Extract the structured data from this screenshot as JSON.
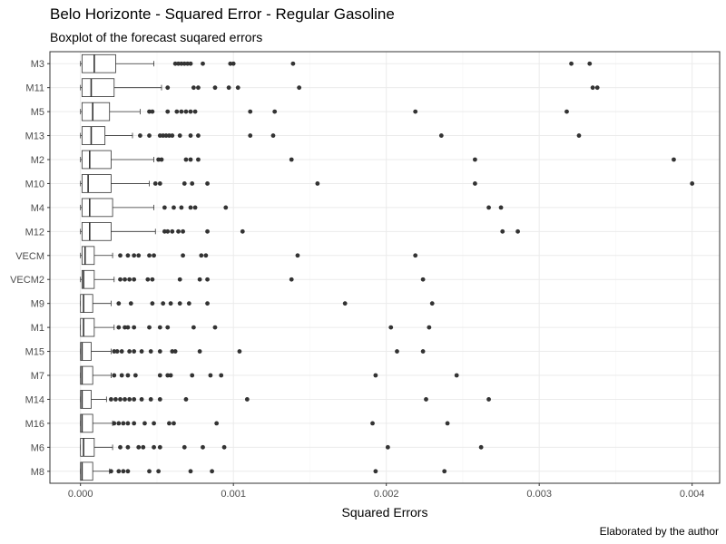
{
  "chart_data": {
    "type": "boxplot",
    "orientation": "horizontal",
    "title": "Belo Horizonte - Squared Error - Regular Gasoline",
    "subtitle": "Boxplot of the forecast suqared errors",
    "xlabel": "Squared Errors",
    "ylabel": "",
    "caption": "Elaborated by the author",
    "xlim": [
      -0.0002,
      0.00418
    ],
    "x_ticks": [
      0,
      0.001,
      0.002,
      0.003,
      0.004
    ],
    "x_tick_labels": [
      "0.000",
      "0.001",
      "0.002",
      "0.003",
      "0.004"
    ],
    "grid": true,
    "colors": {
      "box_fill": "#ffffff",
      "box_line": "#333333",
      "outlier": "#333333",
      "grid_major": "#ebebeb",
      "grid_minor": "#f5f5f5",
      "panel_border": "#333333"
    },
    "categories": [
      "M3",
      "M11",
      "M5",
      "M13",
      "M2",
      "M10",
      "M4",
      "M12",
      "VECM",
      "VECM2",
      "M9",
      "M1",
      "M15",
      "M7",
      "M14",
      "M16",
      "M6",
      "M8"
    ],
    "series": [
      {
        "category": "M3",
        "min": 0.0,
        "q1": 1e-05,
        "median": 9e-05,
        "q3": 0.00023,
        "max": 0.00048,
        "outliers": [
          0.00062,
          0.00064,
          0.00066,
          0.00068,
          0.0007,
          0.00072,
          0.0008,
          0.00098,
          0.001,
          0.00139,
          0.00321,
          0.00333
        ]
      },
      {
        "category": "M11",
        "min": 0.0,
        "q1": 1e-05,
        "median": 7e-05,
        "q3": 0.00022,
        "max": 0.00053,
        "outliers": [
          0.00057,
          0.00074,
          0.00077,
          0.00088,
          0.00097,
          0.00103,
          0.00143,
          0.00335,
          0.00338
        ]
      },
      {
        "category": "M5",
        "min": 0.0,
        "q1": 1e-05,
        "median": 8e-05,
        "q3": 0.00019,
        "max": 0.00039,
        "outliers": [
          0.00045,
          0.00047,
          0.00057,
          0.00063,
          0.00066,
          0.00069,
          0.00072,
          0.00075,
          0.00111,
          0.00127,
          0.00219,
          0.00318
        ]
      },
      {
        "category": "M13",
        "min": 0.0,
        "q1": 1e-05,
        "median": 7e-05,
        "q3": 0.00016,
        "max": 0.00034,
        "outliers": [
          0.00039,
          0.00045,
          0.00052,
          0.00054,
          0.00056,
          0.00058,
          0.0006,
          0.00065,
          0.00072,
          0.00077,
          0.00111,
          0.00126,
          0.00236,
          0.00326
        ]
      },
      {
        "category": "M2",
        "min": 0.0,
        "q1": 1e-05,
        "median": 6e-05,
        "q3": 0.0002,
        "max": 0.00048,
        "outliers": [
          0.00051,
          0.00053,
          0.00069,
          0.00072,
          0.00077,
          0.00138,
          0.00258,
          0.00388
        ]
      },
      {
        "category": "M10",
        "min": 0.0,
        "q1": 1e-05,
        "median": 5e-05,
        "q3": 0.0002,
        "max": 0.00045,
        "outliers": [
          0.00049,
          0.00052,
          0.00068,
          0.00073,
          0.00083,
          0.00155,
          0.00258,
          0.004
        ]
      },
      {
        "category": "M4",
        "min": 0.0,
        "q1": 1e-05,
        "median": 6e-05,
        "q3": 0.00021,
        "max": 0.00048,
        "outliers": [
          0.00055,
          0.00061,
          0.00066,
          0.00072,
          0.00075,
          0.00095,
          0.00267,
          0.00275
        ]
      },
      {
        "category": "M12",
        "min": 0.0,
        "q1": 1e-05,
        "median": 6e-05,
        "q3": 0.0002,
        "max": 0.00049,
        "outliers": [
          0.00055,
          0.00057,
          0.0006,
          0.00064,
          0.00067,
          0.00083,
          0.00106,
          0.00276,
          0.00286
        ]
      },
      {
        "category": "VECM",
        "min": 0.0,
        "q1": 1e-05,
        "median": 3e-05,
        "q3": 9e-05,
        "max": 0.00021,
        "outliers": [
          0.00026,
          0.00031,
          0.00035,
          0.00038,
          0.00045,
          0.00048,
          0.00067,
          0.00079,
          0.00082,
          0.00142,
          0.00219
        ]
      },
      {
        "category": "VECM2",
        "min": 0.0,
        "q1": 1e-05,
        "median": 2e-05,
        "q3": 9e-05,
        "max": 0.00022,
        "outliers": [
          0.00026,
          0.00029,
          0.00032,
          0.00035,
          0.00044,
          0.00047,
          0.00065,
          0.00078,
          0.00083,
          0.00138,
          0.00224
        ]
      },
      {
        "category": "M9",
        "min": 0.0,
        "q1": 0.0,
        "median": 2e-05,
        "q3": 8e-05,
        "max": 0.0002,
        "outliers": [
          0.00025,
          0.00033,
          0.00047,
          0.00054,
          0.00059,
          0.00065,
          0.00071,
          0.00083,
          0.00173,
          0.0023
        ]
      },
      {
        "category": "M1",
        "min": 0.0,
        "q1": 0.0,
        "median": 2e-05,
        "q3": 9e-05,
        "max": 0.00022,
        "outliers": [
          0.00025,
          0.00029,
          0.00031,
          0.00035,
          0.00045,
          0.00052,
          0.00057,
          0.00074,
          0.00088,
          0.00203,
          0.00228
        ]
      },
      {
        "category": "M15",
        "min": 0.0,
        "q1": 0.0,
        "median": 1e-05,
        "q3": 7e-05,
        "max": 0.0002,
        "outliers": [
          0.00022,
          0.00024,
          0.00027,
          0.00032,
          0.00035,
          0.0004,
          0.00046,
          0.00052,
          0.0006,
          0.00062,
          0.00078,
          0.00104,
          0.00207,
          0.00224
        ]
      },
      {
        "category": "M7",
        "min": 0.0,
        "q1": 0.0,
        "median": 1e-05,
        "q3": 8e-05,
        "max": 0.0002,
        "outliers": [
          0.00022,
          0.00027,
          0.00031,
          0.00036,
          0.00052,
          0.00057,
          0.00059,
          0.00073,
          0.00085,
          0.00092,
          0.00193,
          0.00246
        ]
      },
      {
        "category": "M14",
        "min": 0.0,
        "q1": 0.0,
        "median": 1e-05,
        "q3": 7e-05,
        "max": 0.00017,
        "outliers": [
          0.0002,
          0.00023,
          0.00026,
          0.00029,
          0.00032,
          0.00035,
          0.0004,
          0.00046,
          0.00052,
          0.00069,
          0.00109,
          0.00226,
          0.00267
        ]
      },
      {
        "category": "M16",
        "min": 0.0,
        "q1": 0.0,
        "median": 1e-05,
        "q3": 8e-05,
        "max": 0.00021,
        "outliers": [
          0.00022,
          0.00025,
          0.00028,
          0.00031,
          0.00035,
          0.00042,
          0.00048,
          0.00058,
          0.00061,
          0.00089,
          0.00191,
          0.0024
        ]
      },
      {
        "category": "M6",
        "min": 0.0,
        "q1": 0.0,
        "median": 2e-05,
        "q3": 9e-05,
        "max": 0.00021,
        "outliers": [
          0.00026,
          0.00031,
          0.00038,
          0.00041,
          0.00048,
          0.00052,
          0.00068,
          0.0008,
          0.00094,
          0.00201,
          0.00262
        ]
      },
      {
        "category": "M8",
        "min": 0.0,
        "q1": 0.0,
        "median": 1e-05,
        "q3": 8e-05,
        "max": 0.00019,
        "outliers": [
          0.0002,
          0.00025,
          0.00028,
          0.00031,
          0.00045,
          0.00051,
          0.00072,
          0.00086,
          0.00193,
          0.00238
        ]
      }
    ]
  }
}
